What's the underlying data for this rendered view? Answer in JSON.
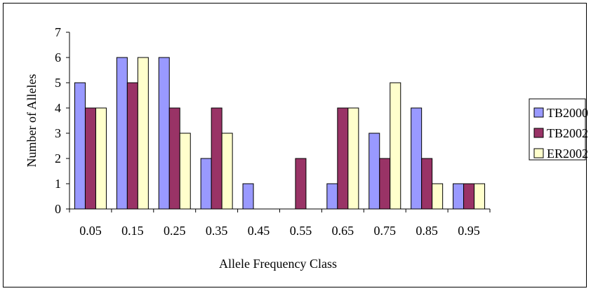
{
  "chart_data": {
    "type": "bar",
    "xlabel": "Allele Frequency Class",
    "ylabel": "Number of Alleles",
    "categories": [
      "0.05",
      "0.15",
      "0.25",
      "0.35",
      "0.45",
      "0.55",
      "0.65",
      "0.75",
      "0.85",
      "0.95"
    ],
    "series": [
      {
        "name": "TB2000",
        "color": "#9999ff",
        "values": [
          5,
          6,
          6,
          2,
          1,
          0,
          1,
          3,
          4,
          1
        ]
      },
      {
        "name": "TB2002",
        "color": "#993366",
        "values": [
          4,
          5,
          4,
          4,
          0,
          2,
          4,
          2,
          2,
          1
        ]
      },
      {
        "name": "ER2002",
        "color": "#ffffcc",
        "values": [
          4,
          6,
          3,
          3,
          0,
          0,
          4,
          5,
          1,
          1
        ]
      }
    ],
    "ylim": [
      0,
      7
    ],
    "yticks": [
      0,
      1,
      2,
      3,
      4,
      5,
      6,
      7
    ],
    "grid": false,
    "legend": "right"
  }
}
